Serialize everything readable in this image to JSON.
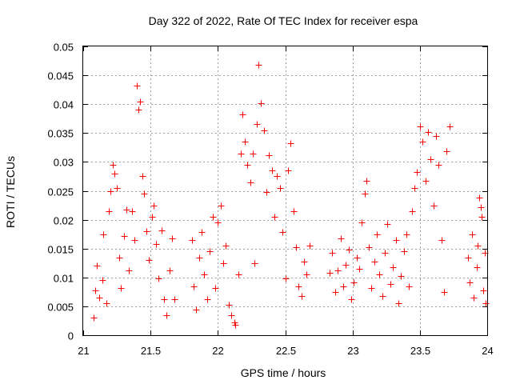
{
  "chart_data": {
    "type": "scatter",
    "title": "Day 322 of 2022, Rate Of TEC Index for receiver espa",
    "xlabel": "GPS time / hours",
    "ylabel": "ROTI / TECUs",
    "xlim": [
      21,
      24
    ],
    "ylim": [
      0,
      0.05
    ],
    "xticks": [
      21,
      21.5,
      22,
      22.5,
      23,
      23.5,
      24
    ],
    "xtick_labels": [
      "21",
      "21.5",
      "22",
      "22.5",
      "23",
      "23.5",
      "24"
    ],
    "yticks": [
      0,
      0.005,
      0.01,
      0.015,
      0.02,
      0.025,
      0.03,
      0.035,
      0.04,
      0.045,
      0.05
    ],
    "ytick_labels": [
      "0",
      "0.005",
      "0.01",
      "0.015",
      "0.02",
      "0.025",
      "0.03",
      "0.035",
      "0.04",
      "0.045",
      "0.05"
    ],
    "grid": true,
    "marker": "plus",
    "color": "#ff0000",
    "data_gaps_hours": [
      [
        21.68,
        21.8
      ],
      [
        22.7,
        22.83
      ],
      [
        23.73,
        23.85
      ]
    ],
    "series": [
      {
        "name": "ROTI",
        "points": [
          [
            21.08,
            0.003
          ],
          [
            21.09,
            0.0078
          ],
          [
            21.1,
            0.012
          ],
          [
            21.12,
            0.0065
          ],
          [
            21.14,
            0.0095
          ],
          [
            21.15,
            0.0175
          ],
          [
            21.17,
            0.0055
          ],
          [
            21.19,
            0.0215
          ],
          [
            21.2,
            0.025
          ],
          [
            21.22,
            0.0295
          ],
          [
            21.23,
            0.028
          ],
          [
            21.25,
            0.0255
          ],
          [
            21.27,
            0.0135
          ],
          [
            21.28,
            0.0082
          ],
          [
            21.3,
            0.0172
          ],
          [
            21.32,
            0.0218
          ],
          [
            21.34,
            0.0112
          ],
          [
            21.36,
            0.0215
          ],
          [
            21.38,
            0.0165
          ],
          [
            21.4,
            0.0432
          ],
          [
            21.41,
            0.039
          ],
          [
            21.42,
            0.0405
          ],
          [
            21.44,
            0.0275
          ],
          [
            21.45,
            0.0245
          ],
          [
            21.47,
            0.018
          ],
          [
            21.49,
            0.013
          ],
          [
            21.51,
            0.0205
          ],
          [
            21.52,
            0.0225
          ],
          [
            21.54,
            0.0158
          ],
          [
            21.56,
            0.0098
          ],
          [
            21.58,
            0.0182
          ],
          [
            21.6,
            0.0062
          ],
          [
            21.62,
            0.0035
          ],
          [
            21.64,
            0.0112
          ],
          [
            21.66,
            0.0168
          ],
          [
            21.68,
            0.0062
          ],
          [
            21.81,
            0.0165
          ],
          [
            21.82,
            0.0085
          ],
          [
            21.84,
            0.0045
          ],
          [
            21.86,
            0.0135
          ],
          [
            21.88,
            0.0178
          ],
          [
            21.9,
            0.0105
          ],
          [
            21.92,
            0.0062
          ],
          [
            21.94,
            0.0145
          ],
          [
            21.96,
            0.0205
          ],
          [
            21.98,
            0.0082
          ],
          [
            22.0,
            0.0195
          ],
          [
            22.02,
            0.0225
          ],
          [
            22.04,
            0.0125
          ],
          [
            22.06,
            0.0155
          ],
          [
            22.08,
            0.0052
          ],
          [
            22.1,
            0.0035
          ],
          [
            22.12,
            0.0022
          ],
          [
            22.13,
            0.0018
          ],
          [
            22.15,
            0.0105
          ],
          [
            22.17,
            0.0315
          ],
          [
            22.18,
            0.0382
          ],
          [
            22.2,
            0.0335
          ],
          [
            22.22,
            0.0295
          ],
          [
            22.24,
            0.0265
          ],
          [
            22.26,
            0.0315
          ],
          [
            22.27,
            0.0125
          ],
          [
            22.29,
            0.0365
          ],
          [
            22.3,
            0.0468
          ],
          [
            22.32,
            0.0402
          ],
          [
            22.34,
            0.0355
          ],
          [
            22.36,
            0.0248
          ],
          [
            22.38,
            0.0312
          ],
          [
            22.4,
            0.0285
          ],
          [
            22.42,
            0.0205
          ],
          [
            22.44,
            0.0275
          ],
          [
            22.46,
            0.0255
          ],
          [
            22.48,
            0.0178
          ],
          [
            22.5,
            0.0098
          ],
          [
            22.52,
            0.0285
          ],
          [
            22.54,
            0.0332
          ],
          [
            22.56,
            0.0215
          ],
          [
            22.58,
            0.0152
          ],
          [
            22.6,
            0.0085
          ],
          [
            22.62,
            0.0068
          ],
          [
            22.64,
            0.0128
          ],
          [
            22.66,
            0.0105
          ],
          [
            22.68,
            0.0155
          ],
          [
            22.83,
            0.0108
          ],
          [
            22.85,
            0.0142
          ],
          [
            22.87,
            0.0075
          ],
          [
            22.89,
            0.0112
          ],
          [
            22.91,
            0.0168
          ],
          [
            22.93,
            0.0085
          ],
          [
            22.95,
            0.0122
          ],
          [
            22.97,
            0.0148
          ],
          [
            22.99,
            0.0062
          ],
          [
            23.01,
            0.0092
          ],
          [
            23.03,
            0.0135
          ],
          [
            23.05,
            0.0115
          ],
          [
            23.07,
            0.0195
          ],
          [
            23.09,
            0.0245
          ],
          [
            23.1,
            0.0268
          ],
          [
            23.12,
            0.0152
          ],
          [
            23.14,
            0.0082
          ],
          [
            23.16,
            0.0128
          ],
          [
            23.18,
            0.0175
          ],
          [
            23.2,
            0.0105
          ],
          [
            23.22,
            0.0068
          ],
          [
            23.24,
            0.0142
          ],
          [
            23.26,
            0.0192
          ],
          [
            23.28,
            0.0088
          ],
          [
            23.3,
            0.0118
          ],
          [
            23.32,
            0.0165
          ],
          [
            23.34,
            0.0055
          ],
          [
            23.36,
            0.0102
          ],
          [
            23.38,
            0.0145
          ],
          [
            23.4,
            0.0175
          ],
          [
            23.42,
            0.0085
          ],
          [
            23.44,
            0.0215
          ],
          [
            23.46,
            0.0255
          ],
          [
            23.48,
            0.0282
          ],
          [
            23.5,
            0.0362
          ],
          [
            23.52,
            0.0335
          ],
          [
            23.54,
            0.0268
          ],
          [
            23.56,
            0.0352
          ],
          [
            23.58,
            0.0305
          ],
          [
            23.6,
            0.0225
          ],
          [
            23.62,
            0.0345
          ],
          [
            23.64,
            0.0295
          ],
          [
            23.66,
            0.0165
          ],
          [
            23.68,
            0.0075
          ],
          [
            23.7,
            0.0318
          ],
          [
            23.72,
            0.0362
          ],
          [
            23.86,
            0.0135
          ],
          [
            23.87,
            0.0092
          ],
          [
            23.89,
            0.0175
          ],
          [
            23.9,
            0.0065
          ],
          [
            23.92,
            0.0118
          ],
          [
            23.93,
            0.0155
          ],
          [
            23.94,
            0.0238
          ],
          [
            23.95,
            0.0222
          ],
          [
            23.96,
            0.0205
          ],
          [
            23.97,
            0.0078
          ],
          [
            23.98,
            0.0142
          ],
          [
            23.99,
            0.0055
          ]
        ]
      }
    ]
  }
}
